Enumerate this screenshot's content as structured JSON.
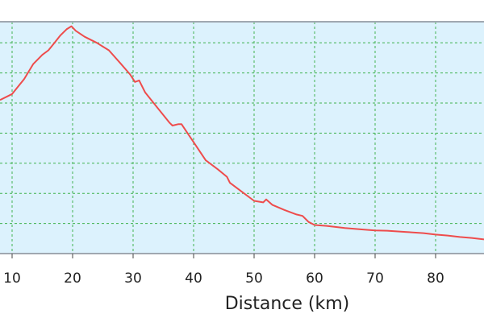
{
  "chart_data": {
    "type": "line",
    "title": "",
    "xlabel": "Distance (km)",
    "ylabel": "",
    "xlim": [
      8,
      88
    ],
    "ylim": [
      0,
      7.7
    ],
    "x_ticks": [
      10,
      20,
      30,
      40,
      50,
      60,
      70,
      80
    ],
    "grid": true,
    "colors": {
      "plot_background": "#dcf2fd",
      "grid": "#3fb34f",
      "line": "#ee4c4c",
      "frame": "#a0a8b0"
    },
    "series": [
      {
        "points": [
          [
            8,
            5.1
          ],
          [
            10,
            5.3
          ],
          [
            12,
            5.8
          ],
          [
            13.5,
            6.3
          ],
          [
            15,
            6.6
          ],
          [
            16,
            6.75
          ],
          [
            17,
            7.0
          ],
          [
            18,
            7.25
          ],
          [
            19,
            7.45
          ],
          [
            19.8,
            7.55
          ],
          [
            20.5,
            7.4
          ],
          [
            22,
            7.2
          ],
          [
            24,
            7.0
          ],
          [
            26,
            6.75
          ],
          [
            28,
            6.3
          ],
          [
            29.5,
            5.95
          ],
          [
            30.3,
            5.7
          ],
          [
            31,
            5.75
          ],
          [
            32,
            5.35
          ],
          [
            34,
            4.85
          ],
          [
            36,
            4.35
          ],
          [
            36.5,
            4.25
          ],
          [
            37.5,
            4.3
          ],
          [
            38,
            4.3
          ],
          [
            39,
            4.0
          ],
          [
            40,
            3.7
          ],
          [
            41,
            3.4
          ],
          [
            42,
            3.1
          ],
          [
            44,
            2.8
          ],
          [
            45.5,
            2.55
          ],
          [
            46,
            2.35
          ],
          [
            48,
            2.05
          ],
          [
            50,
            1.75
          ],
          [
            51.5,
            1.7
          ],
          [
            52,
            1.8
          ],
          [
            53,
            1.62
          ],
          [
            55,
            1.45
          ],
          [
            57,
            1.3
          ],
          [
            58,
            1.25
          ],
          [
            59,
            1.05
          ],
          [
            60,
            0.95
          ],
          [
            62,
            0.92
          ],
          [
            65,
            0.85
          ],
          [
            68,
            0.8
          ],
          [
            70,
            0.77
          ],
          [
            72,
            0.76
          ],
          [
            75,
            0.72
          ],
          [
            78,
            0.68
          ],
          [
            80,
            0.63
          ],
          [
            82,
            0.6
          ],
          [
            84,
            0.55
          ],
          [
            86,
            0.52
          ],
          [
            88,
            0.47
          ]
        ]
      }
    ]
  }
}
